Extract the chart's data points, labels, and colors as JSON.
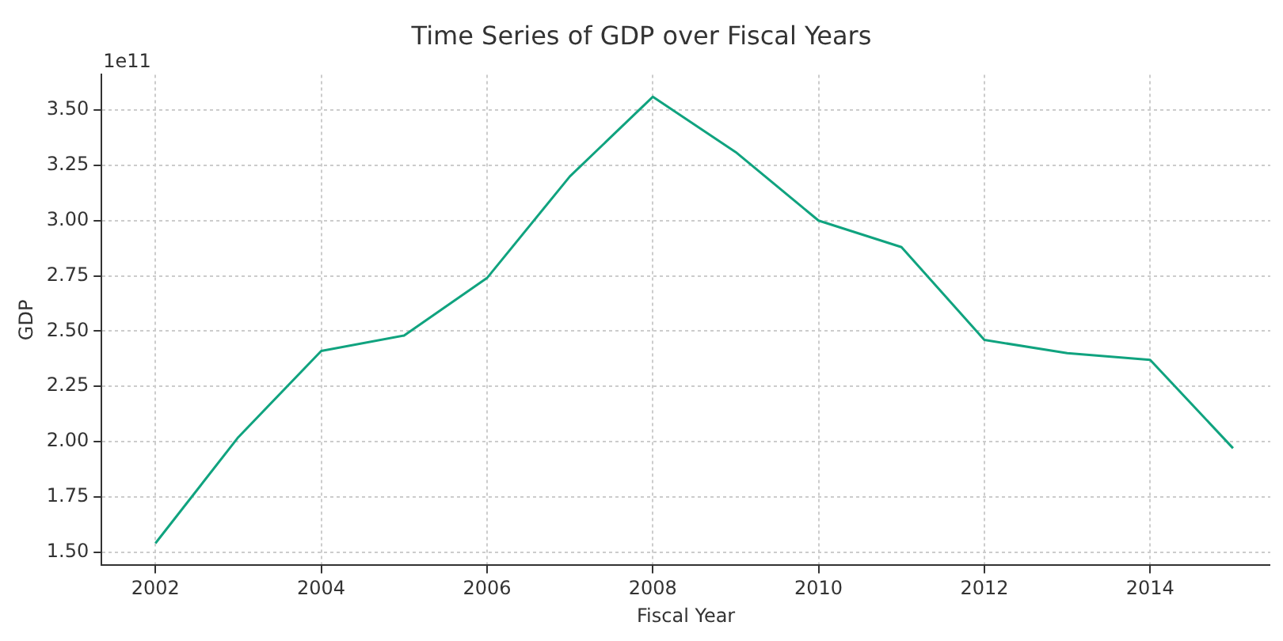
{
  "chart_data": {
    "type": "line",
    "title": "Time Series of GDP over Fiscal Years",
    "xlabel": "Fiscal Year",
    "ylabel": "GDP",
    "annotations": [
      "1e11"
    ],
    "x": [
      2002,
      2003,
      2004,
      2005,
      2006,
      2007,
      2008,
      2009,
      2010,
      2011,
      2012,
      2013,
      2014,
      2015
    ],
    "series": [
      {
        "color": "#10a37f",
        "values": [
          1.54,
          2.02,
          2.41,
          2.48,
          2.74,
          3.2,
          3.56,
          3.31,
          3.0,
          2.88,
          2.46,
          2.4,
          2.37,
          1.97
        ]
      }
    ],
    "xlim": [
      2001.35,
      2015.45
    ],
    "xticks": [
      2002,
      2004,
      2006,
      2008,
      2010,
      2012,
      2014
    ],
    "ylim": [
      1.44,
      3.66
    ],
    "yticks": [
      {
        "value": 1.5,
        "label": "1.50"
      },
      {
        "value": 1.75,
        "label": "1.75"
      },
      {
        "value": 2.0,
        "label": "2.00"
      },
      {
        "value": 2.25,
        "label": "2.25"
      },
      {
        "value": 2.5,
        "label": "2.50"
      },
      {
        "value": 2.75,
        "label": "2.75"
      },
      {
        "value": 3.0,
        "label": "3.00"
      },
      {
        "value": 3.25,
        "label": "3.25"
      },
      {
        "value": 3.5,
        "label": "3.50"
      }
    ],
    "grid": true,
    "legend": false,
    "marker": "none",
    "line_style": "solid"
  }
}
